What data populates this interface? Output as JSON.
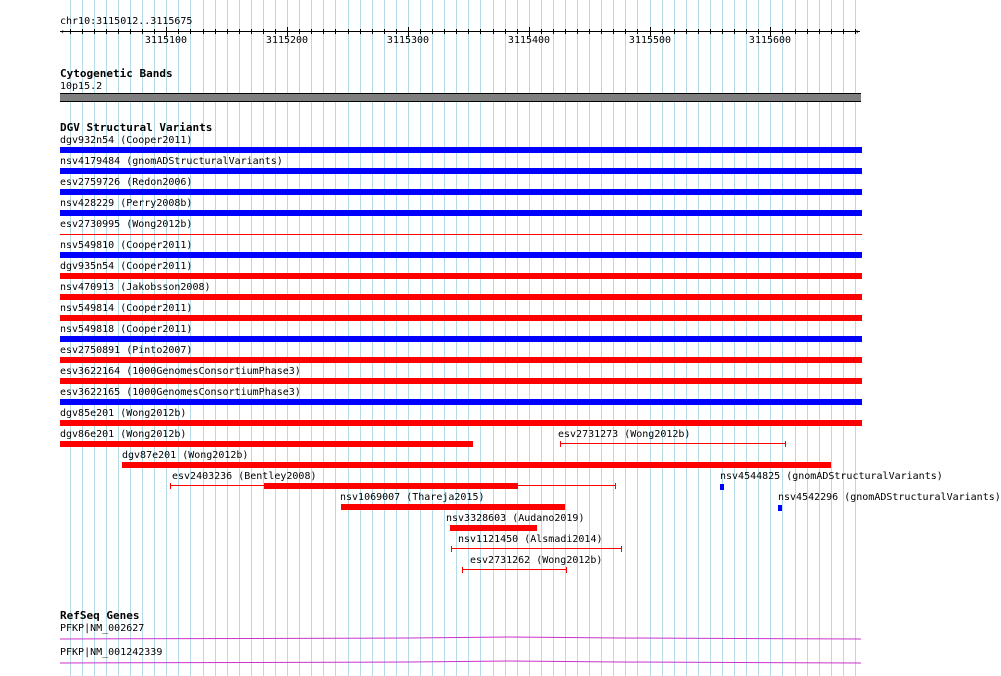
{
  "ruler": {
    "region": "chr10:3115012..3115675",
    "start": 3115012,
    "end": 3115675,
    "ticks": [
      {
        "pos": 3115100,
        "label": "3115100"
      },
      {
        "pos": 3115200,
        "label": "3115200"
      },
      {
        "pos": 3115300,
        "label": "3115300"
      },
      {
        "pos": 3115400,
        "label": "3115400"
      },
      {
        "pos": 3115500,
        "label": "3115500"
      },
      {
        "pos": 3115600,
        "label": "3115600"
      }
    ]
  },
  "cytoband": {
    "title": "Cytogenetic Bands",
    "band_label": "10p15.2",
    "color": "#7f7f7f"
  },
  "dgv": {
    "title": "DGV Structural Variants",
    "colors": {
      "loss": "#ff0000",
      "gain": "#0000ff"
    },
    "full_rows": [
      {
        "label": "dgv932n54 (Cooper2011)",
        "type": "gain"
      },
      {
        "label": "nsv4179484 (gnomADStructuralVariants)",
        "type": "gain"
      },
      {
        "label": "esv2759726 (Redon2006)",
        "type": "gain"
      },
      {
        "label": "nsv428229 (Perry2008b)",
        "type": "gain"
      },
      {
        "label": "esv2730995 (Wong2012b)",
        "type": "loss-thin"
      },
      {
        "label": "nsv549810 (Cooper2011)",
        "type": "gain"
      },
      {
        "label": "dgv935n54 (Cooper2011)",
        "type": "loss"
      },
      {
        "label": "nsv470913 (Jakobsson2008)",
        "type": "loss"
      },
      {
        "label": "nsv549814 (Cooper2011)",
        "type": "loss"
      },
      {
        "label": "nsv549818 (Cooper2011)",
        "type": "gain"
      },
      {
        "label": "esv2750891 (Pinto2007)",
        "type": "loss"
      },
      {
        "label": "esv3622164 (1000GenomesConsortiumPhase3)",
        "type": "loss"
      },
      {
        "label": "esv3622165 (1000GenomesConsortiumPhase3)",
        "type": "gain"
      },
      {
        "label": "dgv85e201 (Wong2012b)",
        "type": "loss"
      }
    ],
    "packed": [
      {
        "label": "dgv86e201 (Wong2012b)",
        "type": "loss",
        "start": 3115012,
        "end": 3115354
      },
      {
        "label": "esv2731273 (Wong2012b)",
        "type": "loss-whisker",
        "start": 3115426,
        "end": 3115612
      },
      {
        "label": "dgv87e201 (Wong2012b)",
        "type": "loss",
        "start": 3115063,
        "end": 3115650
      },
      {
        "label": "esv2403236 (Bentley2008)",
        "type": "loss-whisker-mixed",
        "start": 3115103,
        "end": 3115471,
        "core_start": 3115181,
        "core_end": 3115391
      },
      {
        "label": "nsv4544825 (gnomADStructuralVariants)",
        "type": "gain-small",
        "start": 3115558,
        "end": 3115561
      },
      {
        "label": "nsv1069007 (Thareja2015)",
        "type": "loss",
        "start": 3115245,
        "end": 3115430
      },
      {
        "label": "nsv4542296 (gnomADStructuralVariants)",
        "type": "gain-small",
        "start": 3115606,
        "end": 3115609
      },
      {
        "label": "nsv3328603 (Audano2019)",
        "type": "loss",
        "start": 3115335,
        "end": 3115407
      },
      {
        "label": "nsv1121450 (Alsmadi2014)",
        "type": "loss-whisker",
        "start": 3115336,
        "end": 3115476
      },
      {
        "label": "esv2731262 (Wong2012b)",
        "type": "loss-whisker",
        "start": 3115345,
        "end": 3115431
      }
    ]
  },
  "refseq": {
    "title": "RefSeq Genes",
    "color": "#cc33cc",
    "genes": [
      {
        "label": "PFKP|NM_002627"
      },
      {
        "label": "PFKP|NM_001242339"
      }
    ]
  }
}
